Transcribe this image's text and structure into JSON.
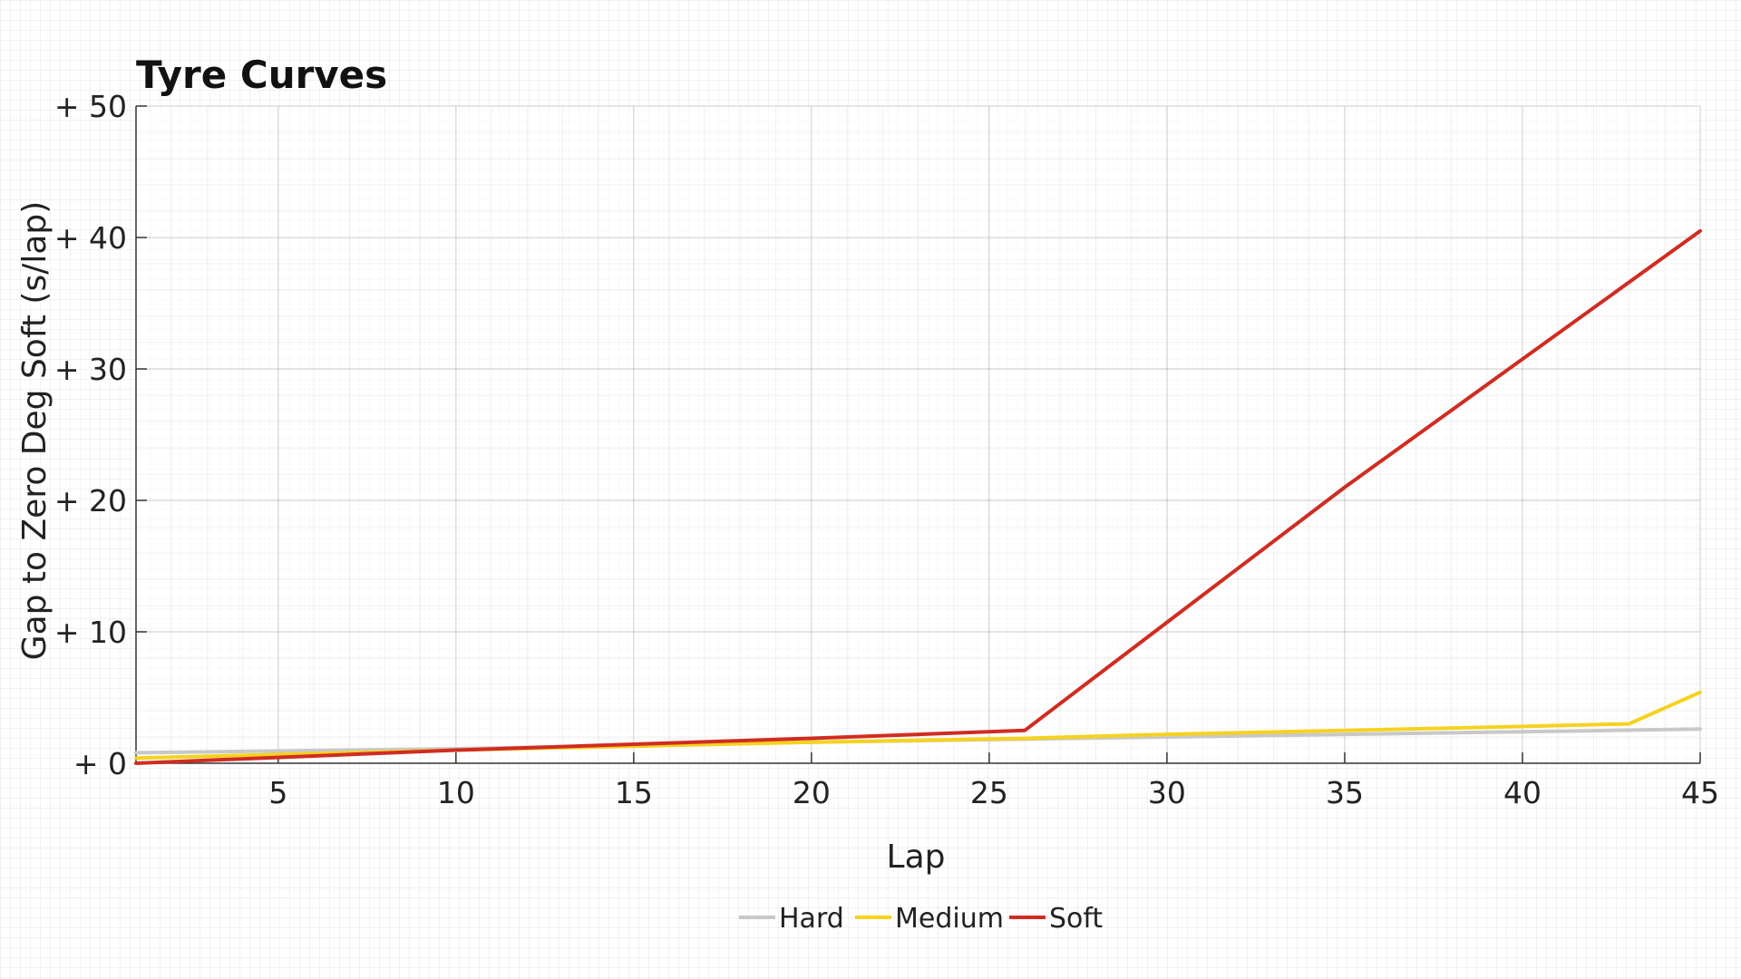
{
  "chart_data": {
    "type": "line",
    "title": "Tyre Curves",
    "xlabel": "Lap",
    "ylabel": "Gap to Zero Deg Soft (s/lap)",
    "xlim": [
      1,
      45
    ],
    "ylim": [
      0,
      50
    ],
    "x_ticks": [
      5,
      10,
      15,
      20,
      25,
      30,
      35,
      40,
      45
    ],
    "y_ticks": [
      0,
      10,
      20,
      30,
      40,
      50
    ],
    "y_tick_labels": [
      "+ 0",
      "+ 10",
      "+ 20",
      "+ 30",
      "+ 40",
      "+ 50"
    ],
    "grid": true,
    "legend_position": "bottom",
    "series": [
      {
        "name": "Hard",
        "color": "#c8c8c8",
        "points": [
          [
            1,
            0.8
          ],
          [
            10,
            1.1
          ],
          [
            20,
            1.6
          ],
          [
            30,
            2.0
          ],
          [
            40,
            2.4
          ],
          [
            45,
            2.6
          ]
        ]
      },
      {
        "name": "Medium",
        "color": "#f5d21f",
        "points": [
          [
            1,
            0.4
          ],
          [
            10,
            1.0
          ],
          [
            20,
            1.6
          ],
          [
            26,
            1.9
          ],
          [
            30,
            2.2
          ],
          [
            40,
            2.8
          ],
          [
            43,
            3.0
          ],
          [
            45,
            5.4
          ]
        ]
      },
      {
        "name": "Soft",
        "color": "#d02c22",
        "points": [
          [
            1,
            0.0
          ],
          [
            10,
            1.0
          ],
          [
            20,
            1.9
          ],
          [
            26,
            2.5
          ],
          [
            35,
            21.0
          ],
          [
            45,
            40.5
          ]
        ]
      }
    ]
  }
}
